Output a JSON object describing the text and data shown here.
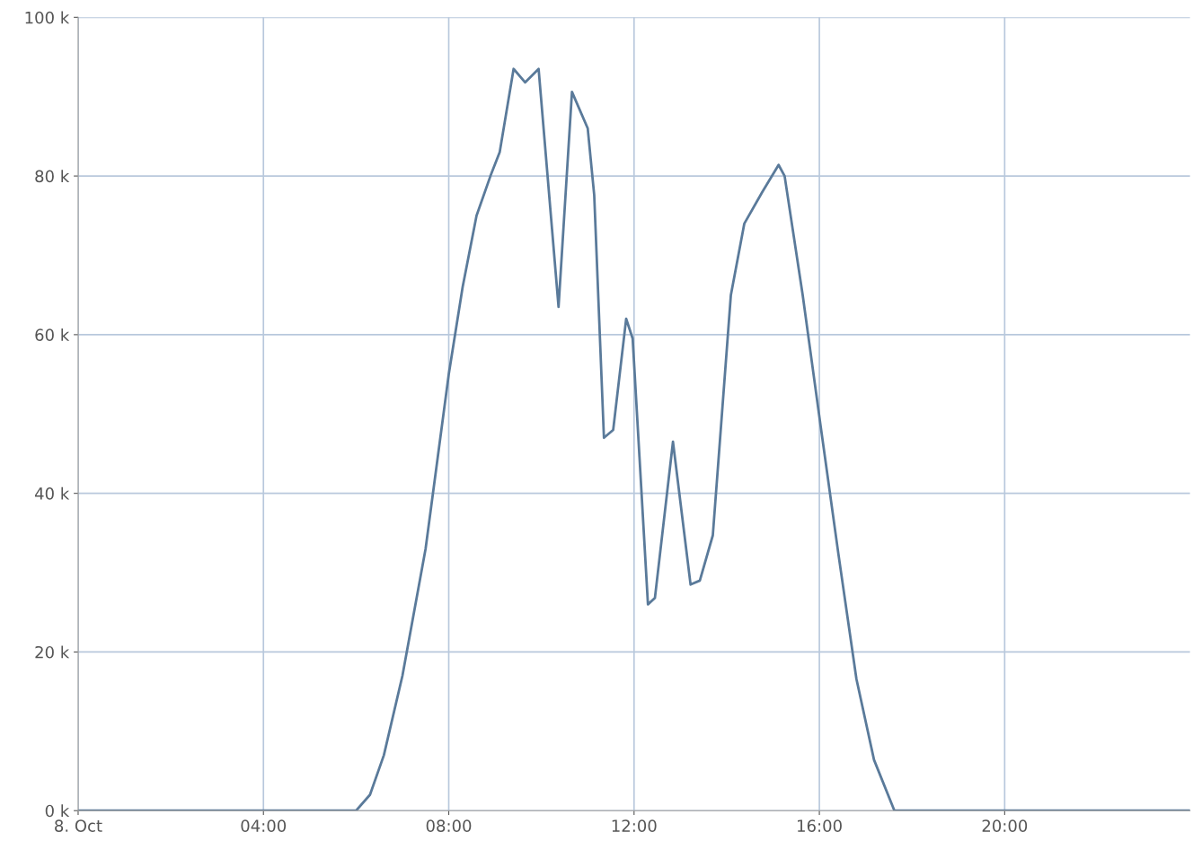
{
  "chart_data": {
    "type": "line",
    "x": [
      0,
      6.0,
      6.3,
      6.6,
      7.0,
      7.5,
      8.0,
      8.3,
      8.6,
      8.9,
      9.1,
      9.4,
      9.65,
      9.94,
      10.37,
      10.66,
      11.0,
      11.14,
      11.35,
      11.55,
      11.83,
      11.97,
      12.3,
      12.45,
      12.84,
      13.22,
      13.42,
      13.7,
      14.09,
      14.38,
      14.77,
      15.12,
      15.25,
      15.64,
      16.02,
      16.41,
      16.8,
      17.18,
      17.62,
      24
    ],
    "series": [
      {
        "color": "#5a7a9a",
        "values": [
          0,
          0,
          2000,
          7000,
          17000,
          33000,
          55000,
          66000,
          75000,
          80000,
          83000,
          93500,
          91800,
          93500,
          63500,
          90600,
          86000,
          77600,
          47000,
          48000,
          62000,
          59500,
          26000,
          26800,
          46500,
          28500,
          29000,
          34700,
          65000,
          74000,
          78000,
          81400,
          80000,
          65000,
          48800,
          32400,
          16600,
          6400,
          0,
          0
        ]
      }
    ],
    "xlim": [
      0,
      24
    ],
    "xticks": [
      {
        "value": 0,
        "label": "8. Oct"
      },
      {
        "value": 4,
        "label": "04:00"
      },
      {
        "value": 8,
        "label": "08:00"
      },
      {
        "value": 12,
        "label": "12:00"
      },
      {
        "value": 16,
        "label": "16:00"
      },
      {
        "value": 20,
        "label": "20:00"
      }
    ],
    "ylim": [
      0,
      100000
    ],
    "yticks": [
      {
        "value": 0,
        "label": "0 k"
      },
      {
        "value": 20000,
        "label": "20 k"
      },
      {
        "value": 40000,
        "label": "40 k"
      },
      {
        "value": 60000,
        "label": "60 k"
      },
      {
        "value": 80000,
        "label": "80 k"
      },
      {
        "value": 100000,
        "label": "100 k"
      }
    ],
    "grid": true,
    "marker": "none",
    "line_style": "solid"
  }
}
